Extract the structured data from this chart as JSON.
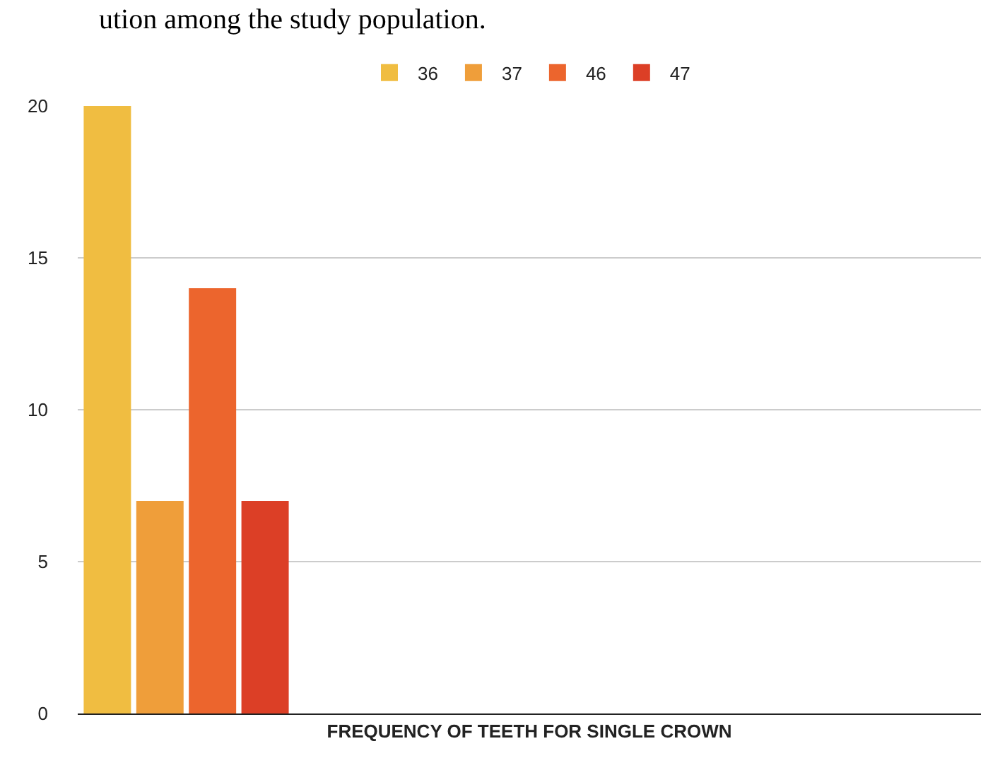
{
  "chart_data": {
    "type": "bar",
    "xlabel": "FREQUENCY OF TEETH FOR SINGLE CROWN",
    "categories": [
      null
    ],
    "series": [
      {
        "name": "36",
        "color": "#f0bd41",
        "values": [
          20
        ]
      },
      {
        "name": "37",
        "color": "#ef9e3a",
        "values": [
          7
        ]
      },
      {
        "name": "46",
        "color": "#ec652d",
        "values": [
          14
        ]
      },
      {
        "name": "47",
        "color": "#dc3f26",
        "values": [
          7
        ]
      }
    ],
    "ylim": [
      0,
      20
    ],
    "yticks": [
      0,
      5,
      10,
      15,
      20
    ],
    "grid": "y",
    "legend": "top",
    "annotations": [
      "ution among the study population."
    ]
  }
}
